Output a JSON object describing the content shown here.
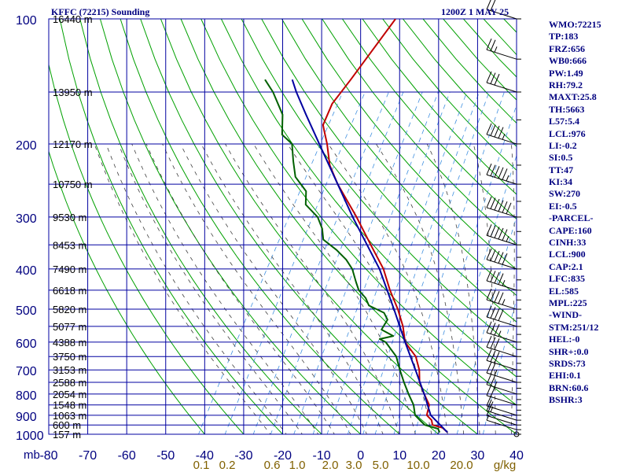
{
  "header": {
    "station": "KFFC (72215) Sounding",
    "time": "1200Z  1 MAY 25"
  },
  "indices": [
    "WMO:72215",
    "TP:183",
    "FRZ:656",
    "WB0:666",
    "PW:1.49",
    "RH:79.2",
    "MAXT:25.8",
    "TH:5663",
    "L57:5.4",
    "LCL:976",
    "LI:-0.2",
    "SI:0.5",
    "TT:47",
    "KI:34",
    "SW:270",
    "EI:-0.5",
    "-PARCEL-",
    "CAPE:160",
    "CINH:33",
    "LCL:900",
    "CAP:2.1",
    "LFC:835",
    "EL:585",
    "MPL:225",
    "-WIND-",
    "STM:251/12",
    "HEL:-0",
    "SHR+:0.0",
    "SRDS:73",
    "EHI:0.1",
    "BRN:60.6",
    "BSHR:3"
  ],
  "chart_data": {
    "type": "line",
    "chart_kind": "skew-T log-P sounding",
    "pressure_axis": {
      "unit": "mb",
      "scale": "log",
      "range": [
        1000,
        100
      ],
      "ticks": [
        100,
        200,
        300,
        400,
        500,
        600,
        700,
        800,
        900,
        1000
      ]
    },
    "temperature_axis": {
      "range": [
        -80,
        40
      ],
      "ticks": [
        -80,
        -70,
        -60,
        -50,
        -40,
        -30,
        -20,
        -10,
        0,
        10,
        20,
        30,
        40
      ],
      "tick_labels": [
        "-80",
        "-70",
        "-60",
        "-50",
        "-40",
        "-30",
        "-20",
        "-10",
        "0",
        "10",
        "20",
        "30",
        "40"
      ]
    },
    "mixing_ratio_labels": [
      "0.1",
      "0.2",
      "0.6",
      "1.0",
      "2.0",
      "3.0",
      "5.0",
      "10.0",
      "20.0"
    ],
    "mixing_ratio_unit": "g/kg",
    "height_labels": [
      {
        "p": 1000,
        "label": "157 m"
      },
      {
        "p": 950,
        "label": "600 m"
      },
      {
        "p": 900,
        "label": "1063 m"
      },
      {
        "p": 850,
        "label": "1548 m"
      },
      {
        "p": 800,
        "label": "2054 m"
      },
      {
        "p": 750,
        "label": "2588 m"
      },
      {
        "p": 700,
        "label": "3153 m"
      },
      {
        "p": 650,
        "label": "3750 m"
      },
      {
        "p": 600,
        "label": "4388 m"
      },
      {
        "p": 550,
        "label": "5077 m"
      },
      {
        "p": 500,
        "label": "5820 m"
      },
      {
        "p": 450,
        "label": "6618 m"
      },
      {
        "p": 400,
        "label": "7490 m"
      },
      {
        "p": 350,
        "label": "8453 m"
      },
      {
        "p": 300,
        "label": "9530 m"
      },
      {
        "p": 250,
        "label": "10750 m"
      },
      {
        "p": 200,
        "label": "12170 m"
      },
      {
        "p": 150,
        "label": "13950 m"
      },
      {
        "p": 100,
        "label": "16440 m"
      }
    ],
    "series": [
      {
        "role": "temperature",
        "color": "#c00000",
        "points": [
          [
            990,
            22
          ],
          [
            965,
            20
          ],
          [
            950,
            17
          ],
          [
            925,
            16
          ],
          [
            900,
            14
          ],
          [
            850,
            13
          ],
          [
            800,
            10
          ],
          [
            750,
            7
          ],
          [
            700,
            5
          ],
          [
            650,
            2
          ],
          [
            600,
            -3
          ],
          [
            550,
            -6
          ],
          [
            500,
            -10
          ],
          [
            450,
            -15
          ],
          [
            400,
            -20
          ],
          [
            350,
            -27
          ],
          [
            300,
            -35
          ],
          [
            250,
            -45
          ],
          [
            225,
            -50
          ],
          [
            200,
            -54
          ],
          [
            185,
            -57
          ],
          [
            180,
            -58
          ],
          [
            160,
            -59
          ],
          [
            140,
            -58
          ],
          [
            100,
            -56
          ]
        ]
      },
      {
        "role": "dewpoint",
        "color": "#006000",
        "points": [
          [
            990,
            20
          ],
          [
            970,
            19
          ],
          [
            950,
            15
          ],
          [
            925,
            13
          ],
          [
            900,
            11
          ],
          [
            850,
            9
          ],
          [
            800,
            6
          ],
          [
            750,
            3
          ],
          [
            700,
            0
          ],
          [
            650,
            -3
          ],
          [
            600,
            -8
          ],
          [
            590,
            -10
          ],
          [
            580,
            -7
          ],
          [
            560,
            -11
          ],
          [
            530,
            -11
          ],
          [
            510,
            -13
          ],
          [
            490,
            -18
          ],
          [
            470,
            -20
          ],
          [
            450,
            -23
          ],
          [
            430,
            -25
          ],
          [
            400,
            -28
          ],
          [
            380,
            -31
          ],
          [
            360,
            -35
          ],
          [
            340,
            -40
          ],
          [
            320,
            -42
          ],
          [
            300,
            -45
          ],
          [
            280,
            -50
          ],
          [
            260,
            -52
          ],
          [
            240,
            -57
          ],
          [
            220,
            -60
          ],
          [
            200,
            -63
          ],
          [
            190,
            -67
          ],
          [
            170,
            -70
          ],
          [
            150,
            -76
          ],
          [
            140,
            -80
          ]
        ]
      },
      {
        "role": "parcel",
        "color": "#0000a0",
        "points": [
          [
            990,
            22
          ],
          [
            900,
            15
          ],
          [
            800,
            10
          ],
          [
            700,
            4
          ],
          [
            600,
            -3
          ],
          [
            500,
            -11
          ],
          [
            400,
            -21
          ],
          [
            300,
            -36
          ],
          [
            250,
            -45
          ],
          [
            200,
            -56
          ],
          [
            170,
            -64
          ],
          [
            150,
            -70
          ],
          [
            140,
            -73
          ]
        ]
      }
    ],
    "wind_barbs": [
      {
        "p": 1000,
        "speed_kt": 0
      },
      {
        "p": 975,
        "speed_kt": 5
      },
      {
        "p": 950,
        "speed_kt": 10
      },
      {
        "p": 925,
        "speed_kt": 15
      },
      {
        "p": 900,
        "speed_kt": 15
      },
      {
        "p": 850,
        "speed_kt": 20
      },
      {
        "p": 800,
        "speed_kt": 25
      },
      {
        "p": 750,
        "speed_kt": 25
      },
      {
        "p": 700,
        "speed_kt": 30
      },
      {
        "p": 650,
        "speed_kt": 30
      },
      {
        "p": 600,
        "speed_kt": 35
      },
      {
        "p": 550,
        "speed_kt": 40
      },
      {
        "p": 500,
        "speed_kt": 45
      },
      {
        "p": 450,
        "speed_kt": 45
      },
      {
        "p": 400,
        "speed_kt": 50
      },
      {
        "p": 350,
        "speed_kt": 55
      },
      {
        "p": 300,
        "speed_kt": 60
      },
      {
        "p": 250,
        "speed_kt": 55
      },
      {
        "p": 200,
        "speed_kt": 45
      },
      {
        "p": 150,
        "speed_kt": 30
      },
      {
        "p": 125,
        "speed_kt": 25
      },
      {
        "p": 100,
        "speed_kt": 20
      }
    ],
    "grid": true,
    "colors": {
      "grid": "#0000a0",
      "dry_adiabats": "#00a000",
      "moist_adiabats": "#404040",
      "mixing_ratio": "#4090e0",
      "axis_text": "#000080",
      "mixing_text": "#806000"
    }
  }
}
